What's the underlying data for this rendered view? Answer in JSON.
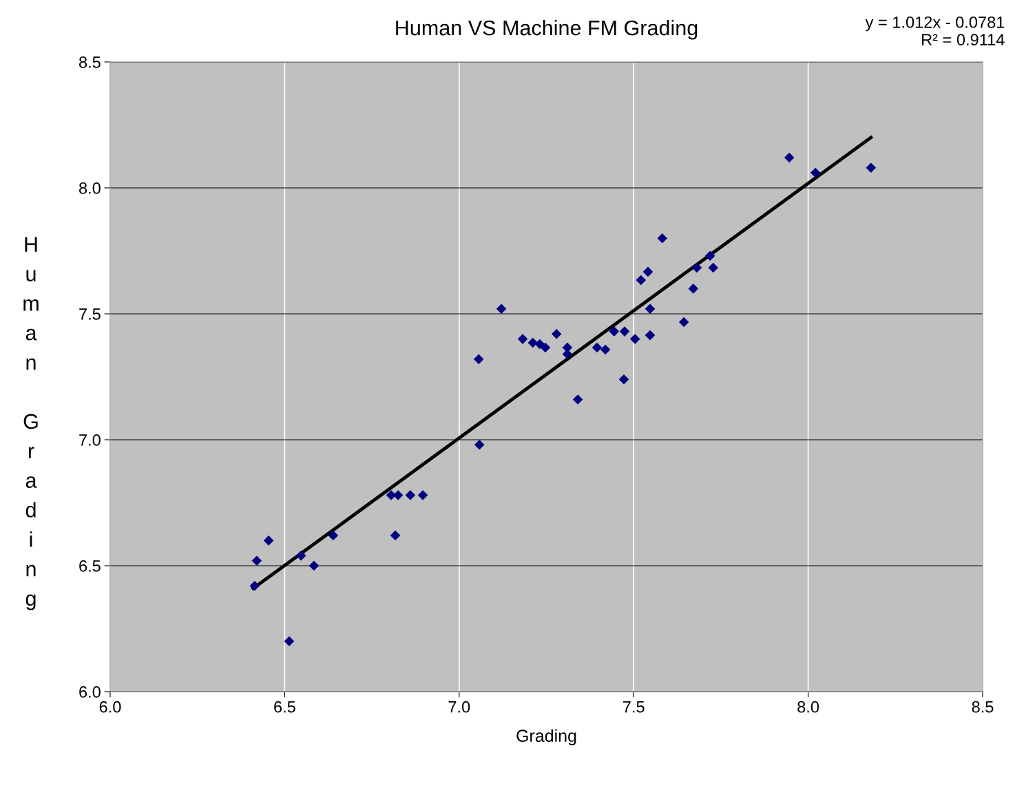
{
  "chart_data": {
    "type": "scatter",
    "title": "Human VS Machine FM Grading",
    "xlabel": "Grading",
    "ylabel": "Human Grading",
    "annotations": [
      "y = 1.012x - 0.0781\nR² = 0.9114"
    ],
    "series": [
      {
        "color": "#000080",
        "marker": "diamond",
        "x": [
          6.414,
          6.42,
          6.454,
          6.513,
          6.547,
          6.584,
          6.639,
          6.805,
          6.825,
          6.817,
          6.86,
          6.896,
          7.056,
          7.058,
          7.121,
          7.182,
          7.211,
          7.231,
          7.247,
          7.279,
          7.31,
          7.31,
          7.34,
          7.395,
          7.419,
          7.444,
          7.474,
          7.472,
          7.504,
          7.521,
          7.541,
          7.547,
          7.547,
          7.582,
          7.644,
          7.671,
          7.681,
          7.719,
          7.728,
          7.946,
          8.021,
          8.18
        ],
        "values": [
          6.42,
          6.52,
          6.6,
          6.2,
          6.54,
          6.5,
          6.62,
          6.78,
          6.78,
          6.62,
          6.78,
          6.78,
          7.32,
          6.98,
          7.52,
          7.4,
          7.385,
          7.38,
          7.366,
          7.42,
          7.366,
          7.34,
          7.16,
          7.366,
          7.358,
          7.43,
          7.43,
          7.24,
          7.4,
          7.634,
          7.667,
          7.52,
          7.415,
          7.8,
          7.467,
          7.6,
          7.683,
          7.73,
          7.683,
          8.12,
          8.06,
          8.08
        ]
      },
      {
        "type": "line",
        "color": "#000000",
        "line_style": "solid",
        "x": [
          6.41,
          8.18
        ],
        "values": [
          6.41,
          8.2
        ]
      }
    ],
    "xlim": [
      6.0,
      8.5
    ],
    "xticks": [
      {
        "value": 6.0,
        "label": "6.0"
      },
      {
        "value": 6.5,
        "label": "6.5"
      },
      {
        "value": 7.0,
        "label": "7.0"
      },
      {
        "value": 7.5,
        "label": "7.5"
      },
      {
        "value": 8.0,
        "label": "8.0"
      },
      {
        "value": 8.5,
        "label": "8.5"
      }
    ],
    "ylim": [
      6.0,
      8.5
    ],
    "yticks": [
      {
        "value": 6.0,
        "label": "6.0"
      },
      {
        "value": 6.5,
        "label": "6.5"
      },
      {
        "value": 7.0,
        "label": "7.0"
      },
      {
        "value": 7.5,
        "label": "7.5"
      },
      {
        "value": 8.0,
        "label": "8.0"
      },
      {
        "value": 8.5,
        "label": "8.5"
      }
    ],
    "grid": true,
    "legend": false
  }
}
